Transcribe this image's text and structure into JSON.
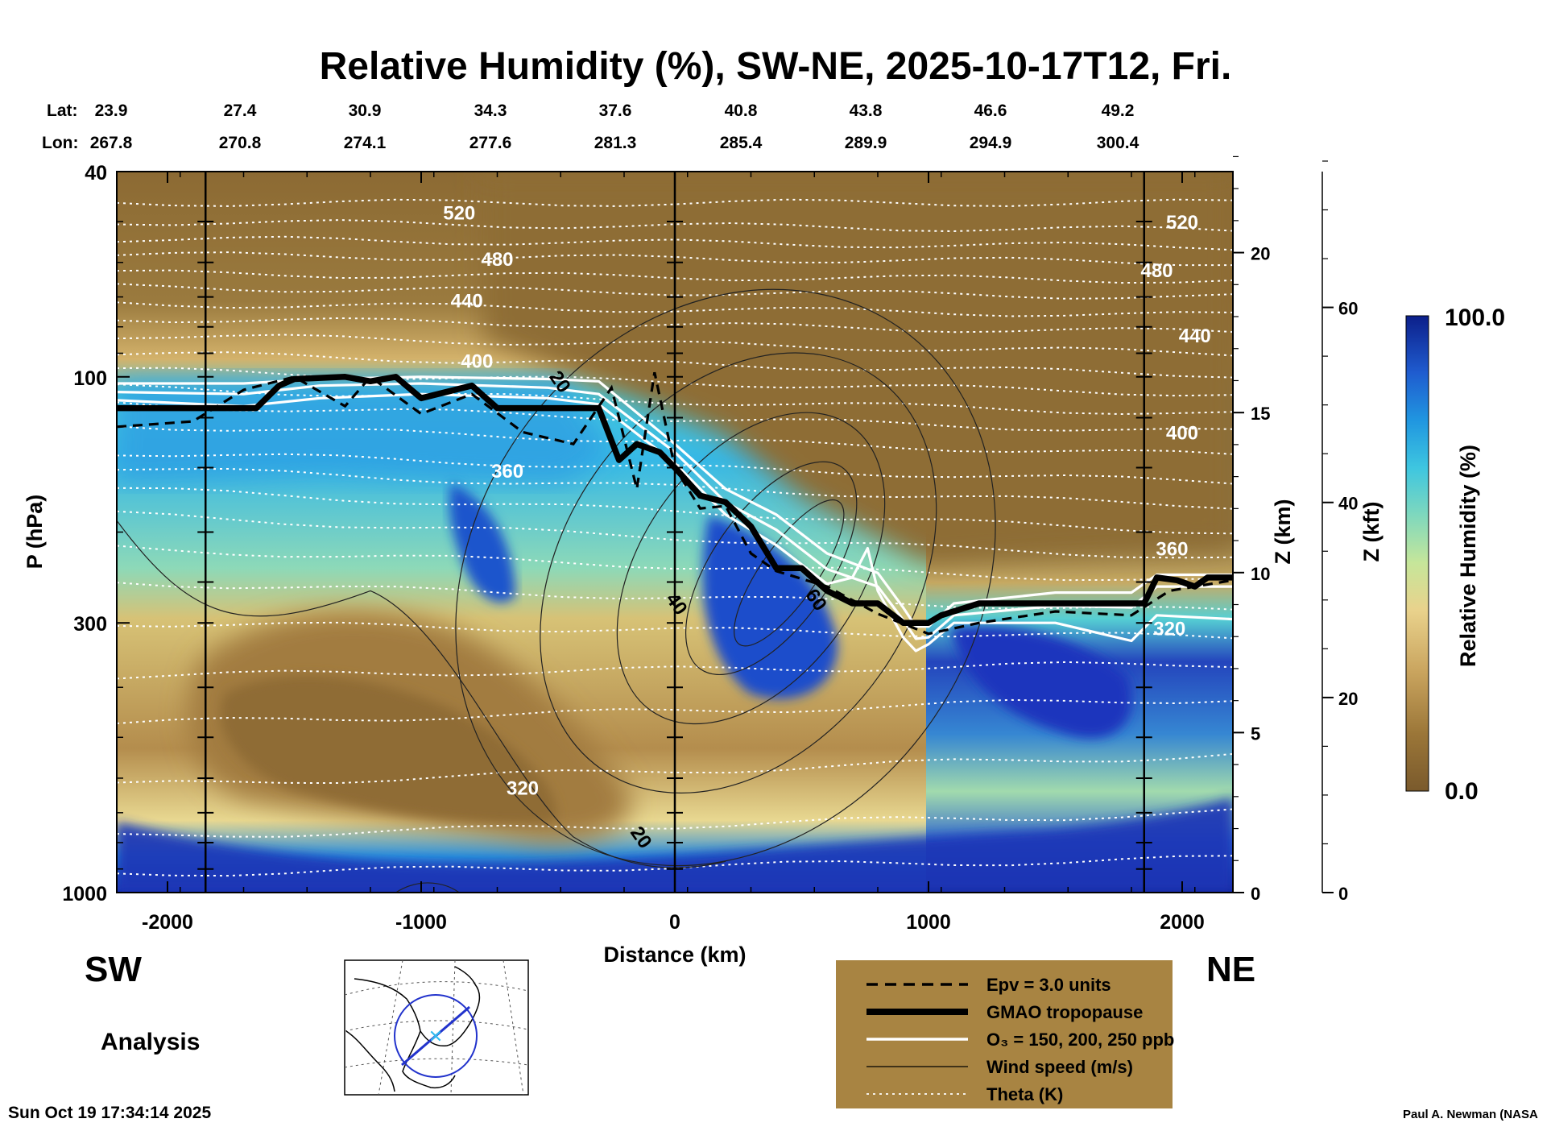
{
  "chart_data": {
    "type": "heatmap",
    "title": "Relative Humidity (%), SW-NE, 2025-10-17T12, Fri.",
    "xlabel": "Distance (km)",
    "ylabel": "P (hPa)",
    "xlim": [
      -2200,
      2200
    ],
    "ylim": [
      1000,
      40
    ],
    "x_ticks": [
      -2000,
      -1000,
      0,
      1000,
      2000
    ],
    "y_ticks": [
      40,
      100,
      300,
      1000
    ],
    "z_km_label": "Z (km)",
    "z_km_ticks": [
      0,
      5,
      10,
      15,
      20
    ],
    "z_kft_label": "Z (kft)",
    "z_kft_ticks": [
      0,
      20,
      40,
      60
    ],
    "lat_label": "Lat:",
    "lon_label": "Lon:",
    "lat": [
      "23.9",
      "27.4",
      "30.9",
      "34.3",
      "37.6",
      "40.8",
      "43.8",
      "46.6",
      "49.2"
    ],
    "lon": [
      "267.8",
      "270.8",
      "274.1",
      "277.6",
      "281.3",
      "285.4",
      "289.9",
      "294.9",
      "300.4"
    ],
    "vertical_lines_km": [
      -1850,
      0,
      1850
    ],
    "colorbar": {
      "label": "Relative Humidity (%)",
      "min": "0.0",
      "max": "100.0",
      "colors": [
        "#7a5a2c",
        "#9b7638",
        "#b89450",
        "#d2b068",
        "#e6c982",
        "#ede29a",
        "#c6e69a",
        "#8fdcb0",
        "#4fd0d8",
        "#29b3e8",
        "#1f86dc",
        "#1f5ccf",
        "#1736b8",
        "#0c1f8a"
      ]
    },
    "theta_contours_K": [
      {
        "label": "520",
        "x": -850,
        "p": 48
      },
      {
        "label": "520",
        "x": 2000,
        "p": 50
      },
      {
        "label": "480",
        "x": -700,
        "p": 59
      },
      {
        "label": "480",
        "x": 1900,
        "p": 62
      },
      {
        "label": "440",
        "x": -820,
        "p": 71
      },
      {
        "label": "440",
        "x": 2050,
        "p": 83
      },
      {
        "label": "400",
        "x": -780,
        "p": 93
      },
      {
        "label": "400",
        "x": 2000,
        "p": 128
      },
      {
        "label": "360",
        "x": -660,
        "p": 152
      },
      {
        "label": "360",
        "x": 1960,
        "p": 215
      },
      {
        "label": "320",
        "x": 1950,
        "p": 307
      },
      {
        "label": "320",
        "x": -600,
        "p": 625
      }
    ],
    "wind_speed_labels_ms": [
      {
        "label": "20",
        "x": -450,
        "p": 102
      },
      {
        "label": "40",
        "x": 10,
        "p": 275
      },
      {
        "label": "60",
        "x": 560,
        "p": 270
      },
      {
        "label": "20",
        "x": -130,
        "p": 780
      }
    ],
    "gmao_tropopause": {
      "x": [
        -2200,
        -1650,
        -1560,
        -1500,
        -1300,
        -1200,
        -1100,
        -1000,
        -800,
        -700,
        -500,
        -300,
        -220,
        -150,
        -60,
        0,
        100,
        200,
        300,
        400,
        500,
        600,
        700,
        800,
        900,
        1000,
        1050,
        1200,
        1850,
        1900,
        1980,
        2050,
        2100,
        2200
      ],
      "p": [
        115,
        115,
        104,
        101,
        100,
        102,
        100,
        110,
        104,
        115,
        115,
        115,
        145,
        135,
        140,
        150,
        170,
        175,
        195,
        235,
        235,
        260,
        275,
        275,
        300,
        300,
        290,
        275,
        275,
        245,
        248,
        255,
        245,
        245
      ]
    },
    "epv_3_units": {
      "x": [
        -2200,
        -1900,
        -1700,
        -1500,
        -1300,
        -1200,
        -1000,
        -800,
        -600,
        -400,
        -250,
        -150,
        -80,
        0,
        100,
        200,
        300,
        400,
        600,
        800,
        1000,
        1200,
        1500,
        1800,
        1950,
        2200
      ],
      "p": [
        125,
        122,
        106,
        100,
        114,
        100,
        118,
        108,
        128,
        135,
        105,
        165,
        98,
        150,
        180,
        178,
        220,
        238,
        255,
        288,
        315,
        300,
        285,
        290,
        260,
        248
      ]
    },
    "ozone_contours_ppb": "150, 200, 250",
    "ozone_150": {
      "x": [
        -2200,
        -1700,
        -1400,
        -1000,
        -500,
        -300,
        0,
        200,
        400,
        600,
        800,
        900,
        950,
        1000,
        1100,
        1500,
        1800,
        1900,
        2200
      ],
      "p": [
        103,
        103,
        101,
        100,
        101,
        102,
        135,
        165,
        185,
        220,
        240,
        280,
        305,
        305,
        275,
        262,
        262,
        242,
        242
      ]
    },
    "ozone_200": {
      "x": [
        -2200,
        -1700,
        -1400,
        -1000,
        -500,
        -300,
        0,
        200,
        400,
        600,
        800,
        900,
        950,
        1000,
        1100,
        1500,
        1800,
        1900,
        2200
      ],
      "p": [
        107,
        108,
        104,
        103,
        105,
        108,
        140,
        175,
        198,
        236,
        255,
        296,
        322,
        320,
        290,
        278,
        280,
        255,
        255
      ]
    },
    "ozone_250": {
      "x": [
        -2200,
        -1700,
        -1400,
        -1000,
        -500,
        -300,
        0,
        200,
        400,
        600,
        700,
        760,
        800,
        900,
        950,
        1000,
        1100,
        1500,
        1800,
        1900,
        2200
      ],
      "p": [
        111,
        114,
        110,
        108,
        110,
        113,
        147,
        185,
        212,
        252,
        245,
        215,
        260,
        320,
        340,
        330,
        300,
        300,
        325,
        290,
        295
      ]
    },
    "legend": [
      {
        "label": "Epv = 3.0 units",
        "style": "dashed"
      },
      {
        "label": "GMAO tropopause",
        "style": "thick"
      },
      {
        "label": "O₃ = 150, 200, 250 ppb",
        "style": "white"
      },
      {
        "label": "Wind speed (m/s)",
        "style": "thin"
      },
      {
        "label": "Theta (K)",
        "style": "dotted"
      }
    ]
  },
  "labels": {
    "sw": "SW",
    "ne": "NE",
    "analysis": "Analysis",
    "timestamp": "Sun Oct 19 17:34:14 2025",
    "credit": "Paul A. Newman (NASA"
  },
  "colors": {
    "legend_bg": "#a88442",
    "dry": "#8a6a34",
    "moist": "#1a2fb0"
  }
}
